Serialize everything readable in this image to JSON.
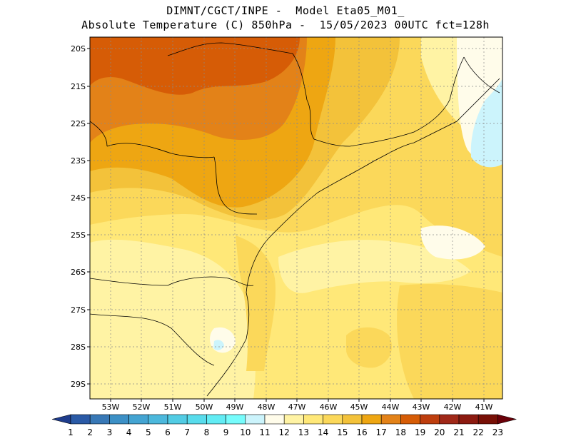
{
  "header": {
    "line1": "DIMNT/CGCT/INPE -  Model Eta05_M01_",
    "line2": "Absolute Temperature (C) 850hPa -  15/05/2023 00UTC fct=128h"
  },
  "axes": {
    "lat_labels": [
      "20S",
      "21S",
      "22S",
      "23S",
      "24S",
      "25S",
      "26S",
      "27S",
      "28S",
      "29S"
    ],
    "lon_labels": [
      "53W",
      "52W",
      "51W",
      "50W",
      "49W",
      "48W",
      "47W",
      "46W",
      "45W",
      "44W",
      "43W",
      "42W",
      "41W"
    ],
    "lat_range": [
      -29.5,
      -19.75
    ],
    "lon_range": [
      -54.0,
      -40.0
    ],
    "grid": true
  },
  "colorbar": {
    "labels": [
      "1",
      "2",
      "3",
      "4",
      "5",
      "6",
      "7",
      "8",
      "9",
      "10",
      "11",
      "12",
      "13",
      "14",
      "15",
      "16",
      "17",
      "18",
      "19",
      "20",
      "21",
      "22",
      "23"
    ],
    "colors": [
      "#1e3c8c",
      "#2a5aa6",
      "#3878b6",
      "#3c90c6",
      "#44a4d2",
      "#4cb8dc",
      "#52cce4",
      "#58dcec",
      "#62ecf4",
      "#76fcfc",
      "#ccf4fc",
      "#fffcea",
      "#fff3a4",
      "#ffe878",
      "#fbd85a",
      "#f3c23a",
      "#eea612",
      "#e38218",
      "#d65c06",
      "#be3e0e",
      "#a02818",
      "#8c1a10",
      "#781006",
      "#6a0008"
    ]
  },
  "map": {
    "colors": {
      "t11": "#ccf4fc",
      "t12": "#fffcea",
      "t13": "#fff3a4",
      "t14": "#ffe878",
      "t15": "#fbd85a",
      "t16": "#f3c23a",
      "t17": "#eea612",
      "t18": "#e38218",
      "t19": "#d65c06"
    }
  }
}
